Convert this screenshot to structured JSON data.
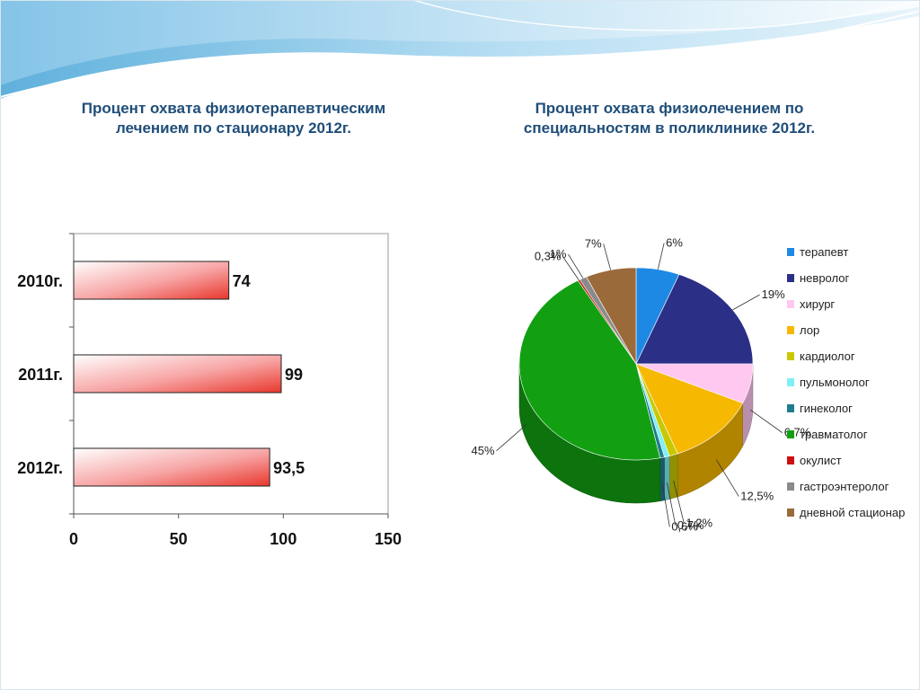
{
  "slide": {
    "accent_colors": [
      "#8ec9ea",
      "#cfe9f7",
      "#5fb0dc"
    ]
  },
  "chart_data": [
    {
      "type": "bar",
      "orientation": "horizontal",
      "title": "Процент охвата физиотерапевтическим лечением по стационару 2012г.",
      "categories": [
        "2010г.",
        "2011г.",
        "2012г."
      ],
      "values": [
        74,
        99,
        93.5
      ],
      "value_labels": [
        "74",
        "99",
        "93,5"
      ],
      "xlim": [
        0,
        150
      ],
      "x_ticks": [
        "0",
        "50",
        "100",
        "150"
      ],
      "grid": false,
      "bar_color": "#e8382c"
    },
    {
      "type": "pie",
      "style": "3d",
      "title": "Процент охвата физиолечением по специальностям в поликлинике 2012г.",
      "legend_position": "right",
      "slices": [
        {
          "name": "терапевт",
          "value": 6,
          "label": "6%",
          "color": "#1e88e5"
        },
        {
          "name": "невролог",
          "value": 19,
          "label": "19%",
          "color": "#2b2f86"
        },
        {
          "name": "хирург",
          "value": 6.7,
          "label": "6,7%",
          "color": "#ffc8f0"
        },
        {
          "name": "лор",
          "value": 12.5,
          "label": "12,5%",
          "color": "#f6b800"
        },
        {
          "name": "кардиолог",
          "value": 1.2,
          "label": "1,2%",
          "color": "#c8c800"
        },
        {
          "name": "пульмонолог",
          "value": 0.7,
          "label": "0,7%",
          "color": "#7ff0f5"
        },
        {
          "name": "гинеколог",
          "value": 0.6,
          "label": "0,6%",
          "color": "#1f7d8c"
        },
        {
          "name": "травматолог",
          "value": 45,
          "label": "45%",
          "color": "#12a012"
        },
        {
          "name": "окулист",
          "value": 0.3,
          "label": "0,3%",
          "color": "#cc1010"
        },
        {
          "name": "гастроэнтеролог",
          "value": 1,
          "label": "1%",
          "color": "#8a8a8a"
        },
        {
          "name": "дневной стационар",
          "value": 7,
          "label": "7%",
          "color": "#9a6a3a"
        }
      ]
    }
  ]
}
